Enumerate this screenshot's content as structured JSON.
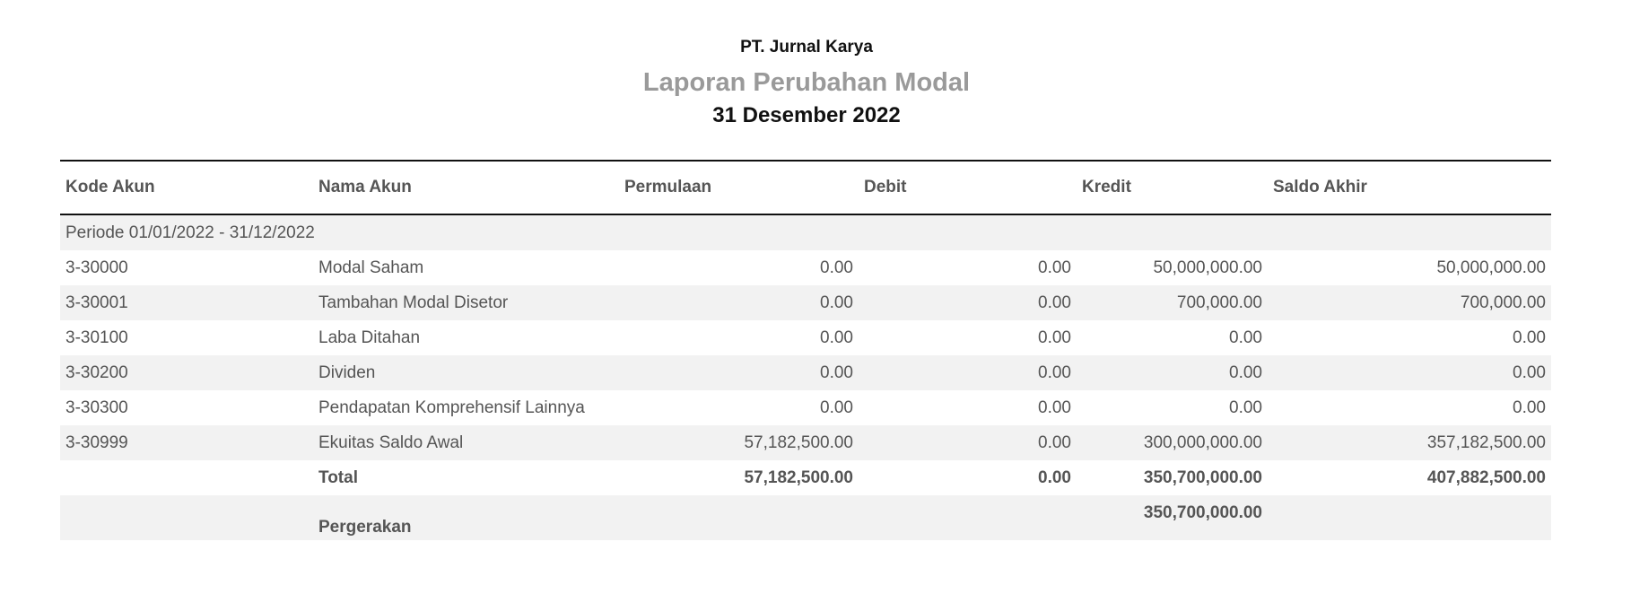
{
  "header": {
    "company": "PT. Jurnal Karya",
    "title": "Laporan Perubahan Modal",
    "date": "31 Desember 2022"
  },
  "table": {
    "columns": [
      "Kode Akun",
      "Nama Akun",
      "Permulaan",
      "Debit",
      "Kredit",
      "Saldo Akhir"
    ],
    "period": "Periode 01/01/2022 - 31/12/2022",
    "rows": [
      {
        "code": "3-30000",
        "name": "Modal Saham",
        "opening": "0.00",
        "debit": "0.00",
        "credit": "50,000,000.00",
        "ending": "50,000,000.00"
      },
      {
        "code": "3-30001",
        "name": "Tambahan Modal Disetor",
        "opening": "0.00",
        "debit": "0.00",
        "credit": "700,000.00",
        "ending": "700,000.00"
      },
      {
        "code": "3-30100",
        "name": "Laba Ditahan",
        "opening": "0.00",
        "debit": "0.00",
        "credit": "0.00",
        "ending": "0.00"
      },
      {
        "code": "3-30200",
        "name": "Dividen",
        "opening": "0.00",
        "debit": "0.00",
        "credit": "0.00",
        "ending": "0.00"
      },
      {
        "code": "3-30300",
        "name": "Pendapatan Komprehensif Lainnya",
        "opening": "0.00",
        "debit": "0.00",
        "credit": "0.00",
        "ending": "0.00"
      },
      {
        "code": "3-30999",
        "name": "Ekuitas Saldo Awal",
        "opening": "57,182,500.00",
        "debit": "0.00",
        "credit": "300,000,000.00",
        "ending": "357,182,500.00"
      }
    ],
    "total": {
      "label": "Total",
      "opening": "57,182,500.00",
      "debit": "0.00",
      "credit": "350,700,000.00",
      "ending": "407,882,500.00"
    },
    "movement": {
      "label": "Pergerakan",
      "credit": "350,700,000.00"
    }
  },
  "colors": {
    "shade": "#f2f2f2",
    "title_gray": "#9a9a9a",
    "text": "#555555"
  }
}
